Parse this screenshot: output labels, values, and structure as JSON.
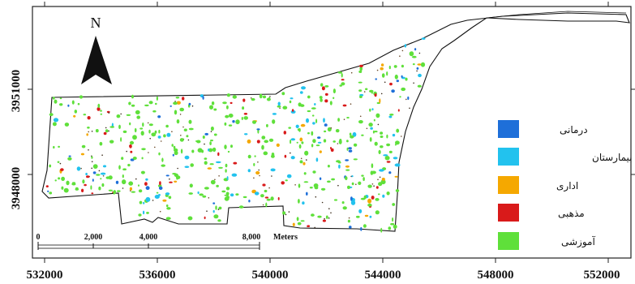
{
  "map": {
    "north_label": "N",
    "x_ticks": [
      "532000",
      "536000",
      "540000",
      "544000",
      "548000",
      "552000"
    ],
    "y_ticks": [
      "3951000",
      "3948000"
    ],
    "scale_bar": {
      "labels": [
        "0",
        "2,000",
        "4,000",
        "8,000"
      ],
      "unit": "Meters"
    },
    "legend": [
      {
        "label": "درمانی",
        "color": "#1e6fd9"
      },
      {
        "label": "بیمارستان",
        "color": "#22c2ee"
      },
      {
        "label": "اداری",
        "color": "#f5a800"
      },
      {
        "label": "مذهبی",
        "color": "#d91a1a"
      },
      {
        "label": "آموزشی",
        "color": "#5fe03a"
      }
    ]
  }
}
